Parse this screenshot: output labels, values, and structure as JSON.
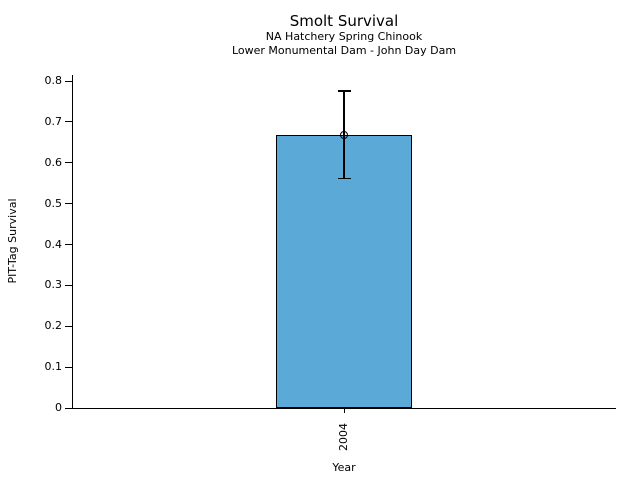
{
  "chart_data": {
    "type": "bar",
    "title": "Smolt Survival",
    "subtitles": [
      "NA Hatchery Spring Chinook",
      "Lower Monumental Dam - John Day Dam"
    ],
    "xlabel": "Year",
    "ylabel": "PIT-Tag Survival",
    "categories": [
      "2004"
    ],
    "values": [
      0.668
    ],
    "error_bars": [
      {
        "lower": 0.561,
        "upper": 0.776
      }
    ],
    "ylim": [
      0,
      0.8
    ],
    "yticks": [
      0,
      0.1,
      0.2,
      0.3,
      0.4,
      0.5,
      0.6,
      0.7,
      0.8
    ],
    "ytick_labels": [
      "0",
      "0.1",
      "0.2",
      "0.3",
      "0.4",
      "0.5",
      "0.6",
      "0.7",
      "0.8"
    ],
    "grid": false,
    "legend": false,
    "bar_color": "#5AA9D6",
    "bar_edge_color": "#000000",
    "error_bar_color": "#000000",
    "marker": "open-circle"
  }
}
